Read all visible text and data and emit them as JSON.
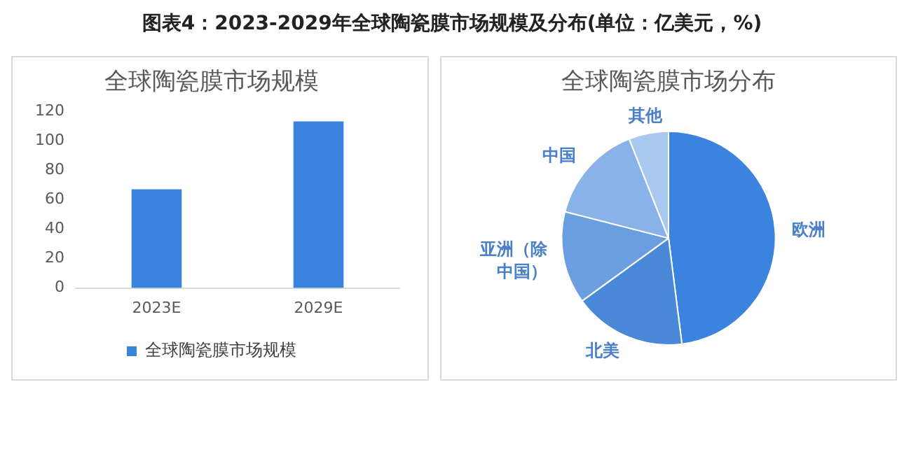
{
  "chart_data": [
    {
      "type": "bar",
      "title": "全球陶瓷膜市场规模",
      "annotations": [
        "图表4：2023-2029年全球陶瓷膜市场规模及分布(单位：亿美元，%)"
      ],
      "categories": [
        "2023E",
        "2029E"
      ],
      "series": [
        {
          "name": "全球陶瓷膜市场规模",
          "color": "#3a84e0",
          "values": [
            67,
            113
          ]
        }
      ],
      "ylim": [
        0,
        120
      ],
      "yticks": [
        0,
        20,
        40,
        60,
        80,
        100,
        120
      ],
      "grid": false,
      "legend": "bottom"
    },
    {
      "type": "pie",
      "title": "全球陶瓷膜市场分布",
      "categories": [
        "欧洲",
        "北美",
        "亚洲（除中国）",
        "中国",
        "其他"
      ],
      "values": [
        48,
        17,
        14,
        15,
        6
      ],
      "colors": [
        "#3a84e0",
        "#4a88d8",
        "#6a9ee0",
        "#88b2e8",
        "#a9c8f0"
      ],
      "legend": false
    }
  ]
}
